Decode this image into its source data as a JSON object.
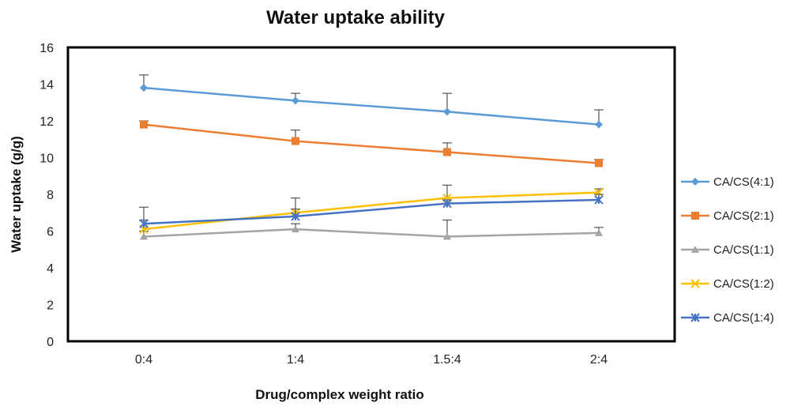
{
  "chart_data": {
    "type": "line",
    "title": "Water uptake ability",
    "xlabel": "Drug/complex weight ratio",
    "ylabel": "Water uptake (g/g)",
    "categories": [
      "0:4",
      "1:4",
      "1.5:4",
      "2:4"
    ],
    "ylim": [
      0,
      16
    ],
    "yticks": [
      0,
      2,
      4,
      6,
      8,
      10,
      12,
      14,
      16
    ],
    "grid": false,
    "legend_position": "right",
    "series": [
      {
        "name": "CA/CS(4:1)",
        "values": [
          13.8,
          13.1,
          12.5,
          11.8
        ],
        "errors": [
          0.7,
          0.4,
          1.0,
          0.8
        ],
        "color": "#5b9bd5",
        "marker": "diamond"
      },
      {
        "name": "CA/CS(2:1)",
        "values": [
          11.8,
          10.9,
          10.3,
          9.7
        ],
        "errors": [
          0.2,
          0.6,
          0.5,
          0.2
        ],
        "color": "#ed7d31",
        "marker": "square"
      },
      {
        "name": "CA/CS(1:1)",
        "values": [
          5.7,
          6.1,
          5.7,
          5.9
        ],
        "errors": [
          0.3,
          0.3,
          0.9,
          0.3
        ],
        "color": "#a5a5a5",
        "marker": "triangle"
      },
      {
        "name": "CA/CS(1:2)",
        "values": [
          6.1,
          7.0,
          7.8,
          8.1
        ],
        "errors": [
          0.5,
          0.8,
          0.7,
          0.2
        ],
        "color": "#ffc000",
        "marker": "x"
      },
      {
        "name": "CA/CS(1:4)",
        "values": [
          6.4,
          6.8,
          7.5,
          7.7
        ],
        "errors": [
          0.9,
          0.4,
          0.2,
          0.3
        ],
        "color": "#4472c4",
        "marker": "star"
      }
    ]
  }
}
